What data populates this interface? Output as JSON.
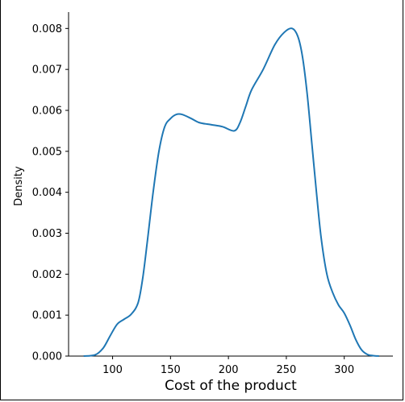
{
  "chart_data": {
    "type": "line",
    "title": "",
    "xlabel": "Cost of the product",
    "ylabel": "Density",
    "xlim": [
      62,
      342
    ],
    "ylim": [
      0,
      0.0084
    ],
    "x_ticks": [
      {
        "value": 100,
        "label": "100"
      },
      {
        "value": 150,
        "label": "150"
      },
      {
        "value": 200,
        "label": "200"
      },
      {
        "value": 250,
        "label": "250"
      },
      {
        "value": 300,
        "label": "300"
      }
    ],
    "y_ticks": [
      {
        "value": 0.0,
        "label": "0.000"
      },
      {
        "value": 0.001,
        "label": "0.001"
      },
      {
        "value": 0.002,
        "label": "0.002"
      },
      {
        "value": 0.003,
        "label": "0.003"
      },
      {
        "value": 0.004,
        "label": "0.004"
      },
      {
        "value": 0.005,
        "label": "0.005"
      },
      {
        "value": 0.006,
        "label": "0.006"
      },
      {
        "value": 0.007,
        "label": "0.007"
      },
      {
        "value": 0.008,
        "label": "0.008"
      }
    ],
    "grid": false,
    "series": [
      {
        "color": "#1f77b4",
        "x": [
          75,
          85,
          92,
          98,
          104,
          110,
          116,
          122,
          126,
          130,
          135,
          140,
          145,
          150,
          155,
          160,
          168,
          175,
          185,
          195,
          205,
          210,
          215,
          220,
          230,
          240,
          248,
          255,
          260,
          264,
          268,
          272,
          276,
          280,
          285,
          290,
          295,
          300,
          305,
          310,
          315,
          320,
          325,
          330
        ],
        "y": [
          0.0,
          3e-05,
          0.0002,
          0.0005,
          0.00078,
          0.0009,
          0.00102,
          0.0013,
          0.0019,
          0.0028,
          0.004,
          0.005,
          0.0056,
          0.0058,
          0.0059,
          0.0059,
          0.0058,
          0.0057,
          0.00565,
          0.0056,
          0.0055,
          0.0057,
          0.0061,
          0.0065,
          0.007,
          0.0076,
          0.0079,
          0.008,
          0.0078,
          0.0073,
          0.0064,
          0.0052,
          0.004,
          0.0029,
          0.002,
          0.00155,
          0.00125,
          0.00105,
          0.00075,
          0.0004,
          0.00015,
          4e-05,
          1e-05,
          0.0
        ]
      }
    ]
  }
}
